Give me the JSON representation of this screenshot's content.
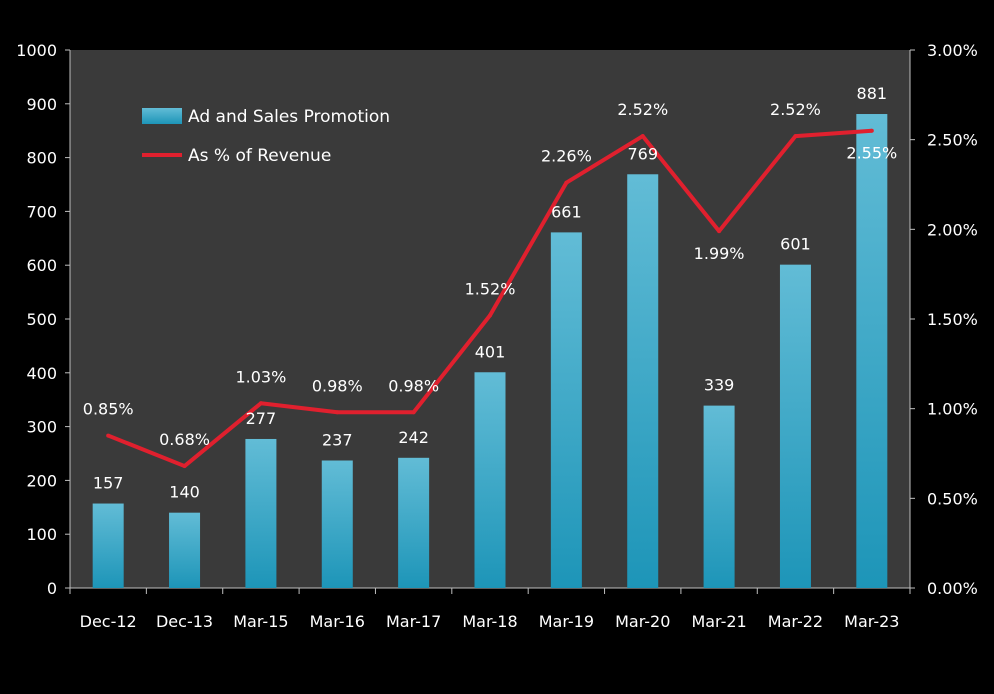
{
  "chart_data": {
    "type": "bar",
    "categories": [
      "Dec-12",
      "Dec-13",
      "Mar-15",
      "Mar-16",
      "Mar-17",
      "Mar-18",
      "Mar-19",
      "Mar-20",
      "Mar-21",
      "Mar-22",
      "Mar-23"
    ],
    "series": [
      {
        "name": "Ad and Sales Promotion",
        "type": "bar",
        "axis": "left",
        "values": [
          157,
          140,
          277,
          237,
          242,
          401,
          661,
          769,
          339,
          601,
          881
        ],
        "labels": [
          "157",
          "140",
          "277",
          "237",
          "242",
          "401",
          "661",
          "769",
          "339",
          "601",
          "881"
        ]
      },
      {
        "name": "As % of Revenue",
        "type": "line",
        "axis": "right",
        "values": [
          0.85,
          0.68,
          1.03,
          0.98,
          0.98,
          1.52,
          2.26,
          2.52,
          1.99,
          2.52,
          2.55
        ],
        "labels": [
          "0.85%",
          "0.68%",
          "1.03%",
          "0.98%",
          "0.98%",
          "1.52%",
          "2.26%",
          "2.52%",
          "1.99%",
          "2.52%",
          "2.55%"
        ]
      }
    ],
    "y_left": {
      "range": [
        0,
        1000
      ],
      "ticks": [
        0,
        100,
        200,
        300,
        400,
        500,
        600,
        700,
        800,
        900,
        1000
      ],
      "tick_labels": [
        "0",
        "100",
        "200",
        "300",
        "400",
        "500",
        "600",
        "700",
        "800",
        "900",
        "1000"
      ]
    },
    "y_right": {
      "range": [
        0,
        3
      ],
      "ticks": [
        0,
        0.5,
        1,
        1.5,
        2,
        2.5,
        3
      ],
      "tick_labels": [
        "0.00%",
        "0.50%",
        "1.00%",
        "1.50%",
        "2.00%",
        "2.50%",
        "3.00%"
      ]
    },
    "grid": false,
    "legend_position": "top-left",
    "colors": {
      "background": "#000000",
      "plot_area": "#3a3a3a",
      "bar": "#2aa3c4",
      "line": "#e0202e",
      "text": "#ffffff",
      "axis": "#bfbfbf"
    }
  }
}
